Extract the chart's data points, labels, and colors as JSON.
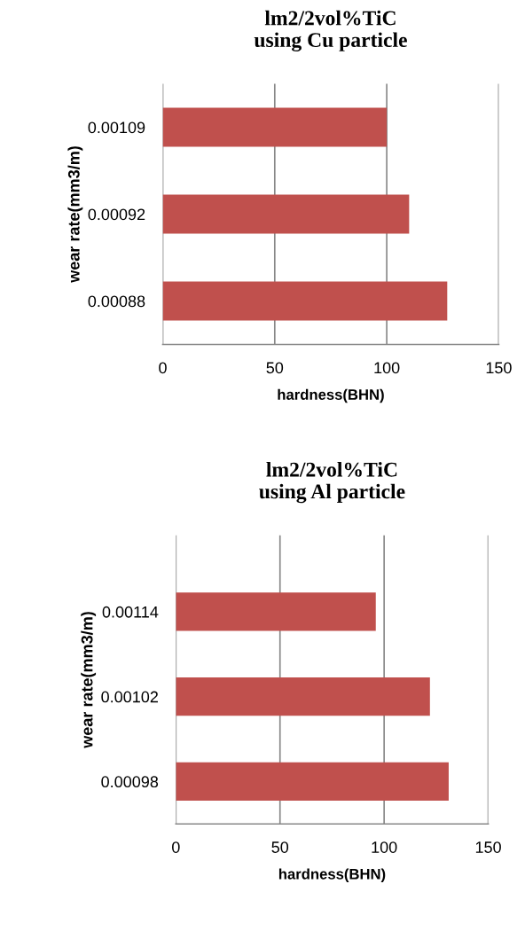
{
  "chart_data": [
    {
      "type": "bar",
      "orientation": "horizontal",
      "title": "lm2/2vol%TiC\nusing Cu particle",
      "xlabel": "hardness(BHN)",
      "ylabel": "wear rate(mm3/m)",
      "categories": [
        "0.00109",
        "0.00092",
        "0.00088"
      ],
      "values": [
        100,
        110,
        127
      ],
      "color": "#c0504d",
      "xlim": [
        0,
        150
      ],
      "xticks": [
        0,
        50,
        100,
        150
      ],
      "grid": "x"
    },
    {
      "type": "bar",
      "orientation": "horizontal",
      "title": "lm2/2vol%TiC\nusing Al particle",
      "xlabel": "hardness(BHN)",
      "ylabel": "wear rate(mm3/m)",
      "categories": [
        "0.00114",
        "0.00102",
        "0.00098"
      ],
      "values": [
        96,
        122,
        131
      ],
      "color": "#c0504d",
      "xlim": [
        0,
        150
      ],
      "xticks": [
        0,
        50,
        100,
        150
      ],
      "grid": "x"
    }
  ]
}
